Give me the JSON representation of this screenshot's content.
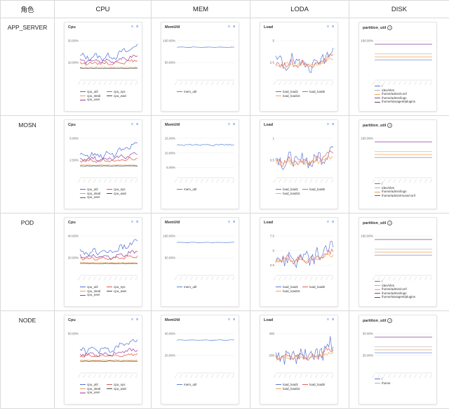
{
  "header": {
    "role": "角色",
    "cols": [
      "CPU",
      "MEM",
      "LODA",
      "DISK"
    ]
  },
  "colors": {
    "cpu_util": "#4a6fd8",
    "cpu_sys": "#e0564a",
    "cpu_steal": "#f0a04b",
    "cpu_wait": "#4e4e4e",
    "cpu_user": "#9a3aa0",
    "mem_util": "#5b86d8",
    "load1": "#5b78d6",
    "load5": "#e0625a",
    "load15": "#f0a85a",
    "disk_purple": "#8a3f9c",
    "disk_gray": "#b0b0b0"
  },
  "icons": [
    "list-icon",
    "chart-toggle-icon",
    "help-circle-icon"
  ],
  "rows": [
    {
      "role": "APP_SERVER",
      "cpu": {
        "title": "Cpu",
        "y_ticks": [
          "20.00%",
          "10.00%"
        ],
        "legend": [
          "cpu_util",
          "cpu_sys",
          "cpu_steal",
          "cpu_wait",
          "cpu_user"
        ]
      },
      "mem": {
        "title": "MemUtil",
        "y_ticks": [
          "100.00%",
          "50.00%"
        ],
        "legend": [
          "mem_util"
        ]
      },
      "load": {
        "title": "Load",
        "y_ticks": [
          "5",
          "2.5"
        ],
        "legend": [
          "load_load1",
          "load_load5",
          "load_load15"
        ]
      },
      "disk": {
        "title": "partition_util",
        "y_ticks": [
          "100.00%"
        ],
        "legend": [
          "/",
          "/dev/shm",
          "/home/admin/conf",
          "/home/admin/logs",
          "/home/staragent/plugins"
        ]
      }
    },
    {
      "role": "MOSN",
      "cpu": {
        "title": "Cpu",
        "y_ticks": [
          "5.00%",
          "2.50%"
        ],
        "legend": [
          "cpu_util",
          "cpu_sys",
          "cpu_steal",
          "cpu_wait",
          "cpu_user"
        ]
      },
      "mem": {
        "title": "MemUtil",
        "y_ticks": [
          "15.00%",
          "10.00%",
          "5.00%"
        ],
        "legend": [
          "mem_util"
        ]
      },
      "load": {
        "title": "Load",
        "y_ticks": [
          "1",
          "0.5"
        ],
        "legend": [
          "load_load1",
          "load_load5",
          "load_load15"
        ]
      },
      "disk": {
        "title": "partition_util",
        "y_ticks": [
          "100.00%"
        ],
        "legend": [
          "/",
          "/dev/shm",
          "/home/admin/logs",
          "/home/admin/mosn/conf"
        ]
      }
    },
    {
      "role": "POD",
      "cpu": {
        "title": "Cpu",
        "y_ticks": [
          "40.00%",
          "20.00%"
        ],
        "legend": [
          "cpu_util",
          "cpu_sys",
          "cpu_steal",
          "cpu_wait",
          "cpu_user"
        ]
      },
      "mem": {
        "title": "MemUtil",
        "y_ticks": [
          "100.00%",
          "50.00%"
        ],
        "legend": [
          "mem_util"
        ]
      },
      "load": {
        "title": "Load",
        "y_ticks": [
          "7.5",
          "5",
          "2.5"
        ],
        "legend": [
          "load_load1",
          "load_load5",
          "load_load15"
        ]
      },
      "disk": {
        "title": "partition_util",
        "y_ticks": [
          "100.00%"
        ],
        "legend": [
          "/",
          "/dev/shm",
          "/home/admin/conf",
          "/home/admin/logs",
          "/home/staragent/plugins"
        ]
      }
    },
    {
      "role": "NODE",
      "cpu": {
        "title": "Cpu",
        "y_ticks": [
          "50.00%"
        ],
        "legend": [
          "cpu_util",
          "cpu_sys",
          "cpu_steal",
          "cpu_wait",
          "cpu_user"
        ]
      },
      "mem": {
        "title": "MemUtil",
        "y_ticks": [
          "40.00%",
          "20.00%"
        ],
        "legend": [
          "mem_util"
        ]
      },
      "load": {
        "title": "Load",
        "y_ticks": [
          "400",
          "200"
        ],
        "legend": [
          "load_load1",
          "load_load5",
          "load_load15"
        ]
      },
      "disk": {
        "title": "partition_util",
        "y_ticks": [
          "30.00%",
          "25.00%"
        ],
        "legend": [
          "/",
          "/home"
        ]
      }
    }
  ]
}
